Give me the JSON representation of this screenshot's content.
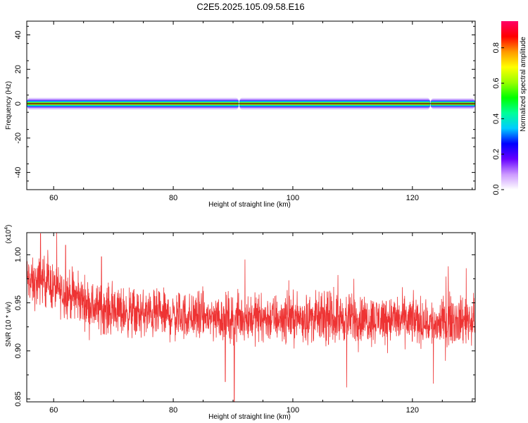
{
  "page": {
    "title": "C2E5.2025.105.09.58.E16"
  },
  "chart_data": [
    {
      "type": "heatmap",
      "title": "C2E5.2025.105.09.58.E16",
      "xlabel": "Height of straight line (km)",
      "ylabel": "Frequency (Hz)",
      "xlim": [
        55.5,
        130.5
      ],
      "ylim": [
        -50,
        48
      ],
      "x_ticks": [
        60,
        80,
        100,
        120
      ],
      "x_tick_labels": [
        "60",
        "80",
        "100",
        "120"
      ],
      "y_ticks": [
        40,
        20,
        0,
        -20,
        -40
      ],
      "y_tick_labels": [
        "40",
        "20",
        "0",
        "-20",
        "-40"
      ],
      "band": {
        "center_hz": 0,
        "x_segments": [
          [
            55.5,
            91
          ],
          [
            91,
            123
          ],
          [
            123,
            130.5
          ]
        ],
        "halfwidth_hz": [
          3.5,
          3.5,
          3.2
        ]
      },
      "grid": false,
      "colorbar": {
        "label": "Normalized spectral amplitude",
        "range": [
          0,
          0.95
        ],
        "ticks": [
          0.0,
          0.2,
          0.4,
          0.6,
          0.8
        ],
        "tick_labels": [
          "0.0",
          "0.2",
          "0.4",
          "0.6",
          "0.8"
        ],
        "colors": [
          "#ffffff",
          "#cc99ff",
          "#6600ff",
          "#0000ff",
          "#00ccff",
          "#00ff99",
          "#00ff00",
          "#99ff00",
          "#ffff00",
          "#ff9900",
          "#ff0000",
          "#ff0066"
        ]
      }
    },
    {
      "type": "line",
      "xlabel": "Height of straight line (km)",
      "ylabel": "SNR (10 * v/v)",
      "y_exponent_label": "(x10",
      "y_exponent_sup": "4",
      "y_exponent_close": ")",
      "xlim": [
        55.5,
        130.5
      ],
      "ylim": [
        0.847,
        1.023
      ],
      "x_ticks": [
        60,
        80,
        100,
        120
      ],
      "x_tick_labels": [
        "60",
        "80",
        "100",
        "120"
      ],
      "y_ticks": [
        0.85,
        0.9,
        0.95,
        1.0
      ],
      "y_tick_labels": [
        "0.85",
        "0.90",
        "0.95",
        "1.00"
      ],
      "grid": false,
      "series": [
        {
          "color": "#ee3333",
          "x": [
            55.5,
            56,
            57,
            58,
            59,
            60,
            61,
            62,
            63,
            64,
            65,
            66,
            67,
            68,
            70,
            72,
            74,
            76,
            78,
            80,
            82,
            84,
            86,
            88,
            90,
            92,
            94,
            96,
            98,
            100,
            102,
            104,
            106,
            108,
            110,
            112,
            114,
            116,
            118,
            120,
            122,
            124,
            126,
            128,
            130.5
          ],
          "y": [
            0.975,
            0.972,
            0.968,
            0.975,
            0.972,
            0.966,
            0.962,
            0.96,
            0.958,
            0.955,
            0.952,
            0.948,
            0.945,
            0.944,
            0.942,
            0.94,
            0.939,
            0.938,
            0.937,
            0.936,
            0.936,
            0.936,
            0.935,
            0.935,
            0.934,
            0.935,
            0.935,
            0.934,
            0.934,
            0.935,
            0.934,
            0.934,
            0.933,
            0.934,
            0.934,
            0.933,
            0.933,
            0.934,
            0.932,
            0.932,
            0.93,
            0.928,
            0.932,
            0.932,
            0.932
          ],
          "noise_amplitude": 0.022,
          "samples": 2200,
          "spikes": [
            [
              57.8,
              1.022
            ],
            [
              59,
              1.005
            ],
            [
              62,
              1.01
            ],
            [
              68,
              0.998
            ],
            [
              90.2,
              0.847
            ],
            [
              88.7,
              0.868
            ],
            [
              92,
              0.995
            ],
            [
              109,
              0.862
            ],
            [
              110.2,
              0.975
            ],
            [
              123.5,
              0.866
            ],
            [
              126,
              0.988
            ],
            [
              129,
              0.986
            ]
          ]
        }
      ]
    }
  ]
}
